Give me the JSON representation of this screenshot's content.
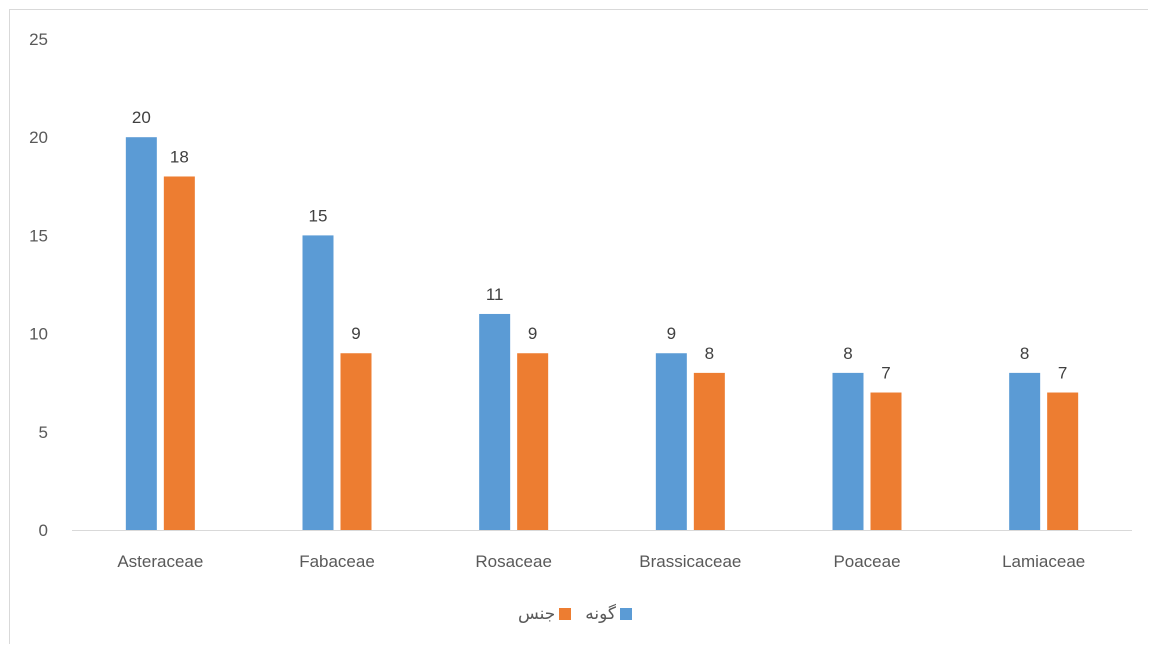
{
  "chart_data": {
    "type": "bar",
    "title": "",
    "xlabel": "",
    "ylabel": "",
    "ylim": [
      0,
      25
    ],
    "yticks": [
      "0",
      "5",
      "10",
      "15",
      "20",
      "25"
    ],
    "categories": [
      "Asteraceae",
      "Fabaceae",
      "Rosaceae",
      "Brassicaceae",
      "Poaceae",
      "Lamiaceae"
    ],
    "series": [
      {
        "name": "گونه",
        "color": "#5b9bd5",
        "values": [
          20,
          15,
          11,
          9,
          8,
          8
        ]
      },
      {
        "name": "جنس",
        "color": "#ed7d31",
        "values": [
          18,
          9,
          9,
          8,
          7,
          7
        ]
      }
    ],
    "grid": false,
    "legend_position": "bottom"
  }
}
